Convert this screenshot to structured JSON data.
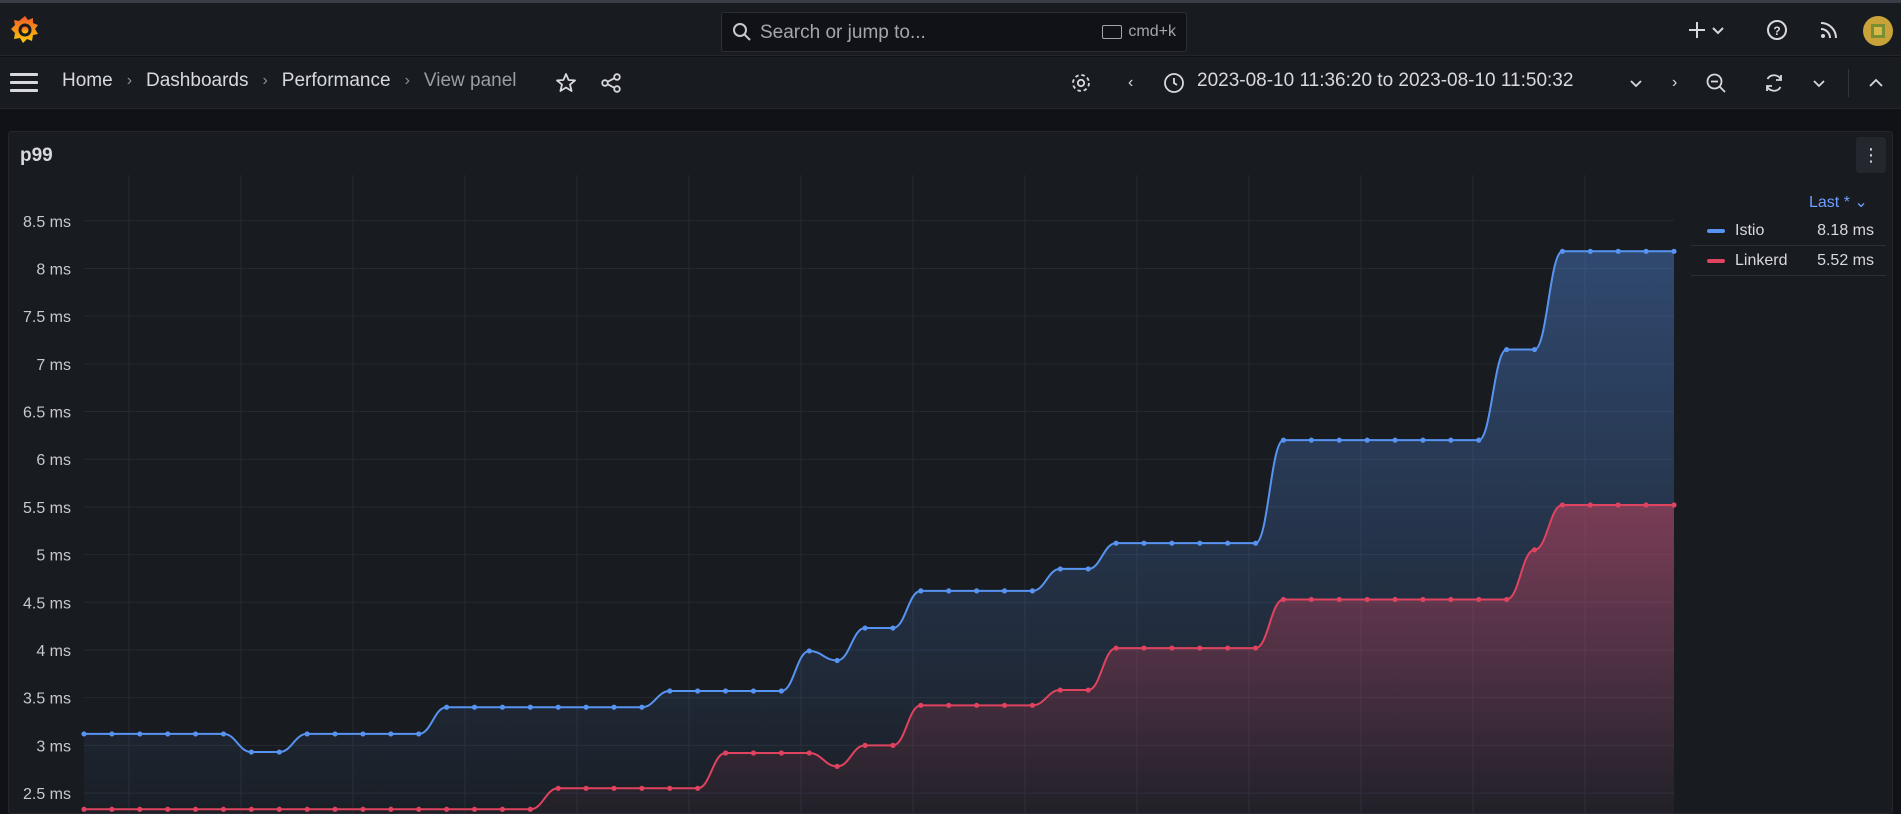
{
  "topbar": {
    "search_placeholder": "Search or jump to...",
    "shortcut": "cmd+k",
    "icons": [
      "grafana-logo-icon",
      "search-icon",
      "keyboard-icon",
      "plus-icon",
      "chevron-down-icon",
      "help-icon",
      "rss-icon",
      "avatar"
    ]
  },
  "breadcrumb": {
    "items": [
      "Home",
      "Dashboards",
      "Performance",
      "View panel"
    ],
    "separator": "›"
  },
  "time": {
    "range": "2023-08-10 11:36:20 to 2023-08-10 11:50:32"
  },
  "panel": {
    "title": "p99",
    "menu_glyph": "⋮"
  },
  "legend": {
    "header": "Last * ⌄",
    "items": [
      {
        "name": "Istio",
        "value": "8.18 ms",
        "color": "#5794f2"
      },
      {
        "name": "Linkerd",
        "value": "5.52 ms",
        "color": "#e0435f"
      }
    ]
  },
  "chart_data": {
    "type": "line",
    "title": "p99",
    "ylabel": "",
    "xlabel": "",
    "y_tick_labels": [
      "2.5 ms",
      "3 ms",
      "3.5 ms",
      "4 ms",
      "4.5 ms",
      "5 ms",
      "5.5 ms",
      "6 ms",
      "6.5 ms",
      "7 ms",
      "7.5 ms",
      "8 ms",
      "8.5 ms"
    ],
    "y_ticks": [
      2.5,
      3,
      3.5,
      4,
      4.5,
      5,
      5.5,
      6,
      6.5,
      7,
      7.5,
      8,
      8.5
    ],
    "ylim": [
      2.27,
      8.98
    ],
    "xlim": [
      0,
      57
    ],
    "grid": true,
    "fill": "gradient",
    "legend_position": "right",
    "series": [
      {
        "name": "Istio",
        "color": "#5794f2",
        "values": [
          3.12,
          3.12,
          3.12,
          3.12,
          3.12,
          3.12,
          2.93,
          2.93,
          3.12,
          3.12,
          3.12,
          3.12,
          3.12,
          3.4,
          3.4,
          3.4,
          3.4,
          3.4,
          3.4,
          3.4,
          3.4,
          3.57,
          3.57,
          3.57,
          3.57,
          3.57,
          3.99,
          3.89,
          4.23,
          4.23,
          4.62,
          4.62,
          4.62,
          4.62,
          4.62,
          4.85,
          4.85,
          5.12,
          5.12,
          5.12,
          5.12,
          5.12,
          5.12,
          6.2,
          6.2,
          6.2,
          6.2,
          6.2,
          6.2,
          6.2,
          6.2,
          7.15,
          7.15,
          8.18,
          8.18,
          8.18,
          8.18,
          8.18
        ]
      },
      {
        "name": "Linkerd",
        "color": "#e0435f",
        "values": [
          2.33,
          2.33,
          2.33,
          2.33,
          2.33,
          2.33,
          2.33,
          2.33,
          2.33,
          2.33,
          2.33,
          2.33,
          2.33,
          2.33,
          2.33,
          2.33,
          2.33,
          2.55,
          2.55,
          2.55,
          2.55,
          2.55,
          2.55,
          2.92,
          2.92,
          2.92,
          2.92,
          2.78,
          3.0,
          3.0,
          3.42,
          3.42,
          3.42,
          3.42,
          3.42,
          3.58,
          3.58,
          4.02,
          4.02,
          4.02,
          4.02,
          4.02,
          4.02,
          4.53,
          4.53,
          4.53,
          4.53,
          4.53,
          4.53,
          4.53,
          4.53,
          4.53,
          5.05,
          5.52,
          5.52,
          5.52,
          5.52,
          5.52
        ]
      }
    ]
  }
}
